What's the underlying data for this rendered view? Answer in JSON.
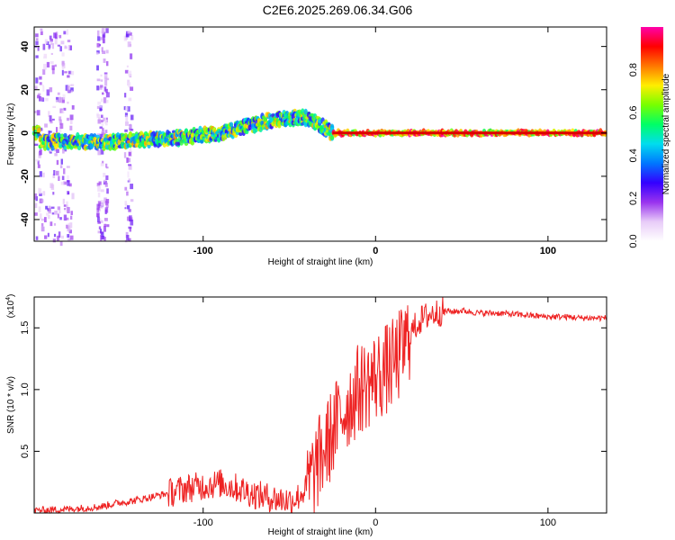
{
  "title": "C2E6.2025.269.06.34.G06",
  "chart_data": [
    {
      "type": "heatmap",
      "xlabel": "Height of straight line (km)",
      "ylabel": "Frequency (Hz)",
      "xlim": [
        -198,
        134
      ],
      "ylim": [
        -50,
        49
      ],
      "xticks": [
        -100,
        0,
        100
      ],
      "yticks": [
        -40,
        -20,
        0,
        20,
        40
      ],
      "colorbar": {
        "label": "Normalized spectral amplitude",
        "range": [
          0,
          1
        ],
        "ticks": [
          "0.0",
          "0.2",
          "0.4",
          "0.6",
          "0.8"
        ],
        "colors": [
          "#ffffff",
          "#e8ccf8",
          "#9933ee",
          "#3300ff",
          "#0077ff",
          "#00ddee",
          "#00ff66",
          "#77ff00",
          "#ffee00",
          "#ff7700",
          "#ff0000",
          "#ff00aa"
        ]
      },
      "doppler_trend": {
        "x": [
          -195,
          -170,
          -150,
          -130,
          -110,
          -90,
          -70,
          -60,
          -50,
          -40,
          -35,
          -25,
          0,
          20,
          60,
          100,
          134
        ],
        "frequency": [
          -4,
          -4,
          -4,
          -3,
          -2,
          0,
          4,
          6,
          7,
          7,
          5,
          0,
          0,
          0,
          0,
          0,
          0
        ]
      }
    },
    {
      "type": "line",
      "xlabel": "Height of straight line (km)",
      "ylabel": "SNR (10 * v/v)",
      "multiplier": "(x10",
      "multiplier_exp": "4",
      "xlim": [
        -198,
        134
      ],
      "ylim": [
        0,
        1.75
      ],
      "xticks": [
        -100,
        0,
        100
      ],
      "yticks": [
        "0.5",
        "1.0",
        "1.5"
      ],
      "ytick_values": [
        0.5,
        1.0,
        1.5
      ],
      "series": [
        {
          "name": "SNR",
          "color": "#ee2222",
          "x": [
            -198,
            -180,
            -160,
            -150,
            -140,
            -130,
            -120,
            -110,
            -100,
            -90,
            -80,
            -70,
            -60,
            -50,
            -45,
            -40,
            -35,
            -30,
            -25,
            -20,
            -15,
            -10,
            -5,
            0,
            5,
            10,
            15,
            20,
            25,
            30,
            35,
            40,
            45,
            50,
            60,
            70,
            80,
            90,
            100,
            110,
            120,
            134
          ],
          "values": [
            0.02,
            0.03,
            0.05,
            0.08,
            0.1,
            0.13,
            0.16,
            0.2,
            0.22,
            0.24,
            0.2,
            0.15,
            0.12,
            0.1,
            0.13,
            0.2,
            0.35,
            0.5,
            0.65,
            0.8,
            0.9,
            1.0,
            1.05,
            1.1,
            1.15,
            1.2,
            1.3,
            1.45,
            1.55,
            1.6,
            1.62,
            1.64,
            1.63,
            1.64,
            1.62,
            1.62,
            1.61,
            1.6,
            1.59,
            1.59,
            1.58,
            1.58
          ]
        }
      ]
    }
  ]
}
